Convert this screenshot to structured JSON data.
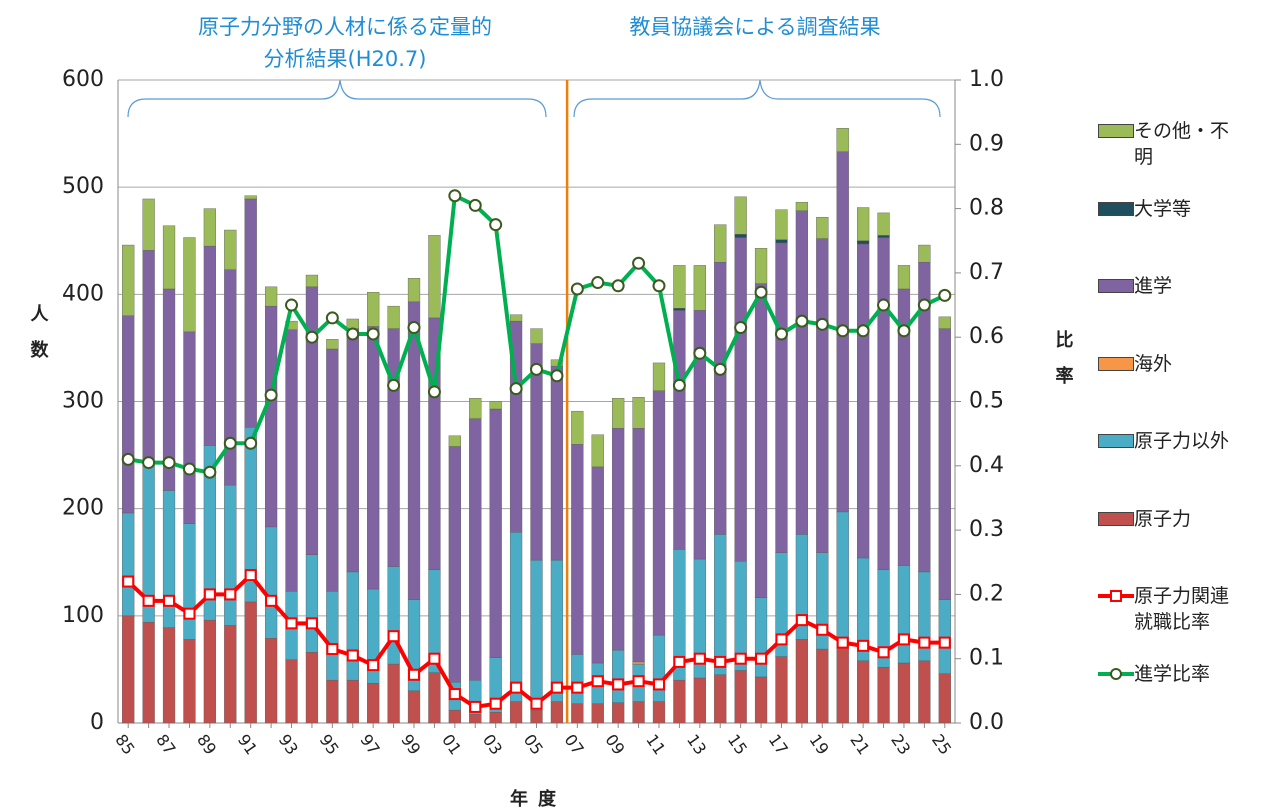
{
  "chart_data": {
    "type": "bar",
    "stacked": true,
    "annotations": [
      [
        "原子力分野の人材に係る定量的",
        "分析結果(H20.7)"
      ],
      [
        "教員協議会による調査結果"
      ]
    ],
    "y_label": "人数",
    "y2_label": "比率",
    "x_label": "年度",
    "categories": [
      "85",
      null,
      "87",
      null,
      "89",
      null,
      "91",
      null,
      "93",
      null,
      "95",
      null,
      "97",
      null,
      "99",
      null,
      "01",
      null,
      "03",
      null,
      "05",
      null,
      "07",
      null,
      "09",
      null,
      "11",
      null,
      "13",
      null,
      "15",
      null,
      "17",
      null,
      "19",
      null,
      "21",
      null,
      "23",
      null,
      "25"
    ],
    "ylim": [
      0,
      600
    ],
    "yticks": [
      0,
      100,
      200,
      300,
      400,
      500,
      600
    ],
    "y2lim": [
      0,
      1
    ],
    "y2ticks": [
      {
        "value": 0,
        "label": "0.0"
      },
      0.1,
      0.2,
      0.3,
      0.4,
      0.5,
      0.6,
      0.7,
      0.8,
      0.9,
      {
        "value": 1,
        "label": "1.0"
      }
    ],
    "grid": true,
    "legend": "right",
    "series": [
      {
        "name": "原子力",
        "color": "#c0504d",
        "values": [
          100,
          94,
          89,
          78,
          96,
          91,
          113,
          79,
          59,
          66,
          40,
          40,
          37,
          55,
          30,
          47,
          12,
          8,
          10,
          20,
          12,
          20,
          18,
          18,
          19,
          20,
          20,
          40,
          42,
          45,
          49,
          43,
          62,
          78,
          69,
          73,
          58,
          52,
          56,
          58,
          46
        ]
      },
      {
        "name": "原子力以外",
        "color": "#4bacc6",
        "values": [
          96,
          146,
          128,
          108,
          163,
          131,
          163,
          104,
          64,
          91,
          83,
          101,
          88,
          91,
          85,
          96,
          26,
          32,
          51,
          158,
          140,
          132,
          46,
          38,
          49,
          35,
          62,
          122,
          111,
          131,
          102,
          74,
          97,
          98,
          90,
          124,
          96,
          91,
          91,
          83,
          69
        ]
      },
      {
        "name": "海外",
        "color": "#f79646",
        "values": [
          0,
          0,
          0,
          0,
          0,
          0,
          0,
          0,
          0,
          0,
          0,
          0,
          0,
          0,
          0,
          0,
          0,
          0,
          0,
          0,
          0,
          0,
          0,
          0,
          0,
          2,
          0,
          0,
          0,
          0,
          0,
          0,
          0,
          0,
          0,
          0,
          0,
          0,
          0,
          0,
          0
        ]
      },
      {
        "name": "進学",
        "color": "#8064a2",
        "values": [
          184,
          201,
          188,
          179,
          186,
          201,
          213,
          206,
          244,
          250,
          226,
          227,
          245,
          222,
          278,
          235,
          220,
          244,
          232,
          197,
          202,
          181,
          196,
          183,
          207,
          218,
          228,
          223,
          232,
          254,
          302,
          293,
          289,
          302,
          293,
          336,
          293,
          310,
          258,
          289,
          253
        ]
      },
      {
        "name": "大学等",
        "color": "#1f4e5f",
        "values": [
          0,
          0,
          0,
          0,
          0,
          0,
          0,
          0,
          0,
          0,
          0,
          0,
          0,
          0,
          0,
          0,
          0,
          0,
          0,
          0,
          0,
          0,
          0,
          0,
          0,
          0,
          0,
          2,
          0,
          0,
          3,
          0,
          3,
          0,
          0,
          0,
          3,
          2,
          0,
          0,
          0
        ]
      },
      {
        "name": "その他・不明",
        "color": "#9bbb59",
        "values": [
          66,
          48,
          59,
          88,
          35,
          37,
          3,
          18,
          8,
          11,
          9,
          9,
          32,
          21,
          22,
          77,
          10,
          19,
          7,
          6,
          14,
          6,
          31,
          30,
          28,
          29,
          26,
          40,
          42,
          35,
          35,
          33,
          28,
          8,
          20,
          22,
          31,
          21,
          22,
          16,
          11
        ]
      },
      {
        "name": "原子力関連就職比率",
        "type": "line",
        "axis": "y2",
        "color": "#ff0000",
        "marker": "square",
        "values": [
          0.22,
          0.19,
          0.19,
          0.17,
          0.2,
          0.2,
          0.23,
          0.19,
          0.155,
          0.155,
          0.115,
          0.105,
          0.09,
          0.135,
          0.075,
          0.1,
          0.045,
          0.025,
          0.03,
          0.055,
          0.03,
          0.055,
          0.055,
          0.065,
          0.06,
          0.065,
          0.06,
          0.095,
          0.1,
          0.095,
          0.1,
          0.1,
          0.13,
          0.16,
          0.145,
          0.125,
          0.12,
          0.11,
          0.13,
          0.125,
          0.125
        ]
      },
      {
        "name": "進学比率",
        "type": "line",
        "axis": "y2",
        "color": "#00b050",
        "marker": "circle",
        "values": [
          0.41,
          0.405,
          0.405,
          0.395,
          0.39,
          0.435,
          0.435,
          0.51,
          0.65,
          0.6,
          0.63,
          0.605,
          0.605,
          0.525,
          0.615,
          0.515,
          0.82,
          0.805,
          0.775,
          0.52,
          0.55,
          0.54,
          0.675,
          0.685,
          0.68,
          0.715,
          0.68,
          0.525,
          0.575,
          0.55,
          0.615,
          0.67,
          0.605,
          0.625,
          0.62,
          0.61,
          0.61,
          0.65,
          0.61,
          0.65,
          0.665
        ]
      }
    ]
  }
}
